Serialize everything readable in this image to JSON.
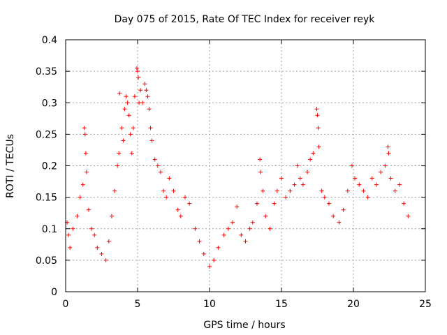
{
  "chart_data": {
    "type": "scatter",
    "title": "Day 075 of 2015, Rate Of TEC Index for receiver reyk",
    "xlabel": "GPS time / hours",
    "ylabel": "ROTI / TECUs",
    "xlim": [
      0,
      25
    ],
    "ylim": [
      0,
      0.4
    ],
    "xticks": [
      0,
      5,
      10,
      15,
      20,
      25
    ],
    "xtick_labels": [
      "0",
      "5",
      "10",
      "15",
      "20",
      "25"
    ],
    "yticks": [
      0,
      0.05,
      0.1,
      0.15,
      0.2,
      0.25,
      0.3,
      0.35,
      0.4
    ],
    "ytick_labels": [
      "0",
      "0.05",
      "0.1",
      "0.15",
      "0.2",
      "0.25",
      "0.3",
      "0.35",
      "0.4"
    ],
    "grid": true,
    "marker": "+",
    "marker_color": "#ff0000",
    "series": [
      {
        "name": "ROTI",
        "points": [
          [
            0.1,
            0.11
          ],
          [
            0.2,
            0.09
          ],
          [
            0.3,
            0.07
          ],
          [
            0.5,
            0.1
          ],
          [
            0.8,
            0.12
          ],
          [
            1.0,
            0.15
          ],
          [
            1.2,
            0.17
          ],
          [
            1.3,
            0.26
          ],
          [
            1.35,
            0.25
          ],
          [
            1.4,
            0.22
          ],
          [
            1.45,
            0.19
          ],
          [
            1.6,
            0.13
          ],
          [
            1.8,
            0.1
          ],
          [
            2.0,
            0.09
          ],
          [
            2.2,
            0.07
          ],
          [
            2.5,
            0.06
          ],
          [
            2.8,
            0.05
          ],
          [
            3.0,
            0.08
          ],
          [
            3.2,
            0.12
          ],
          [
            3.4,
            0.16
          ],
          [
            3.6,
            0.2
          ],
          [
            3.7,
            0.22
          ],
          [
            3.75,
            0.315
          ],
          [
            3.9,
            0.26
          ],
          [
            4.0,
            0.24
          ],
          [
            4.1,
            0.29
          ],
          [
            4.2,
            0.31
          ],
          [
            4.3,
            0.3
          ],
          [
            4.4,
            0.28
          ],
          [
            4.5,
            0.25
          ],
          [
            4.6,
            0.22
          ],
          [
            4.7,
            0.26
          ],
          [
            4.8,
            0.31
          ],
          [
            4.95,
            0.355
          ],
          [
            5.0,
            0.35
          ],
          [
            5.05,
            0.34
          ],
          [
            5.1,
            0.3
          ],
          [
            5.2,
            0.32
          ],
          [
            5.35,
            0.3
          ],
          [
            5.5,
            0.33
          ],
          [
            5.6,
            0.32
          ],
          [
            5.7,
            0.31
          ],
          [
            5.8,
            0.29
          ],
          [
            5.9,
            0.26
          ],
          [
            6.0,
            0.24
          ],
          [
            6.2,
            0.21
          ],
          [
            6.4,
            0.2
          ],
          [
            6.6,
            0.19
          ],
          [
            6.8,
            0.16
          ],
          [
            7.0,
            0.15
          ],
          [
            7.2,
            0.18
          ],
          [
            7.5,
            0.16
          ],
          [
            7.8,
            0.13
          ],
          [
            8.0,
            0.12
          ],
          [
            8.3,
            0.15
          ],
          [
            8.6,
            0.14
          ],
          [
            9.0,
            0.1
          ],
          [
            9.3,
            0.08
          ],
          [
            9.6,
            0.06
          ],
          [
            10.0,
            0.04
          ],
          [
            10.3,
            0.05
          ],
          [
            10.6,
            0.07
          ],
          [
            11.0,
            0.09
          ],
          [
            11.3,
            0.1
          ],
          [
            11.6,
            0.11
          ],
          [
            11.9,
            0.135
          ],
          [
            12.2,
            0.09
          ],
          [
            12.5,
            0.08
          ],
          [
            12.8,
            0.1
          ],
          [
            13.0,
            0.11
          ],
          [
            13.3,
            0.14
          ],
          [
            13.5,
            0.21
          ],
          [
            13.55,
            0.19
          ],
          [
            13.7,
            0.16
          ],
          [
            13.9,
            0.12
          ],
          [
            14.2,
            0.1
          ],
          [
            14.5,
            0.14
          ],
          [
            14.7,
            0.16
          ],
          [
            15.0,
            0.18
          ],
          [
            15.3,
            0.15
          ],
          [
            15.6,
            0.16
          ],
          [
            15.9,
            0.17
          ],
          [
            16.1,
            0.2
          ],
          [
            16.3,
            0.18
          ],
          [
            16.5,
            0.17
          ],
          [
            16.8,
            0.19
          ],
          [
            17.0,
            0.21
          ],
          [
            17.2,
            0.22
          ],
          [
            17.45,
            0.29
          ],
          [
            17.5,
            0.28
          ],
          [
            17.55,
            0.26
          ],
          [
            17.6,
            0.23
          ],
          [
            17.8,
            0.16
          ],
          [
            18.0,
            0.15
          ],
          [
            18.3,
            0.14
          ],
          [
            18.6,
            0.12
          ],
          [
            19.0,
            0.11
          ],
          [
            19.3,
            0.13
          ],
          [
            19.6,
            0.16
          ],
          [
            19.9,
            0.2
          ],
          [
            20.1,
            0.18
          ],
          [
            20.4,
            0.17
          ],
          [
            20.7,
            0.16
          ],
          [
            21.0,
            0.15
          ],
          [
            21.3,
            0.18
          ],
          [
            21.6,
            0.17
          ],
          [
            21.9,
            0.19
          ],
          [
            22.2,
            0.2
          ],
          [
            22.4,
            0.23
          ],
          [
            22.45,
            0.22
          ],
          [
            22.6,
            0.18
          ],
          [
            22.9,
            0.16
          ],
          [
            23.2,
            0.17
          ],
          [
            23.5,
            0.14
          ],
          [
            23.8,
            0.12
          ]
        ]
      }
    ]
  }
}
